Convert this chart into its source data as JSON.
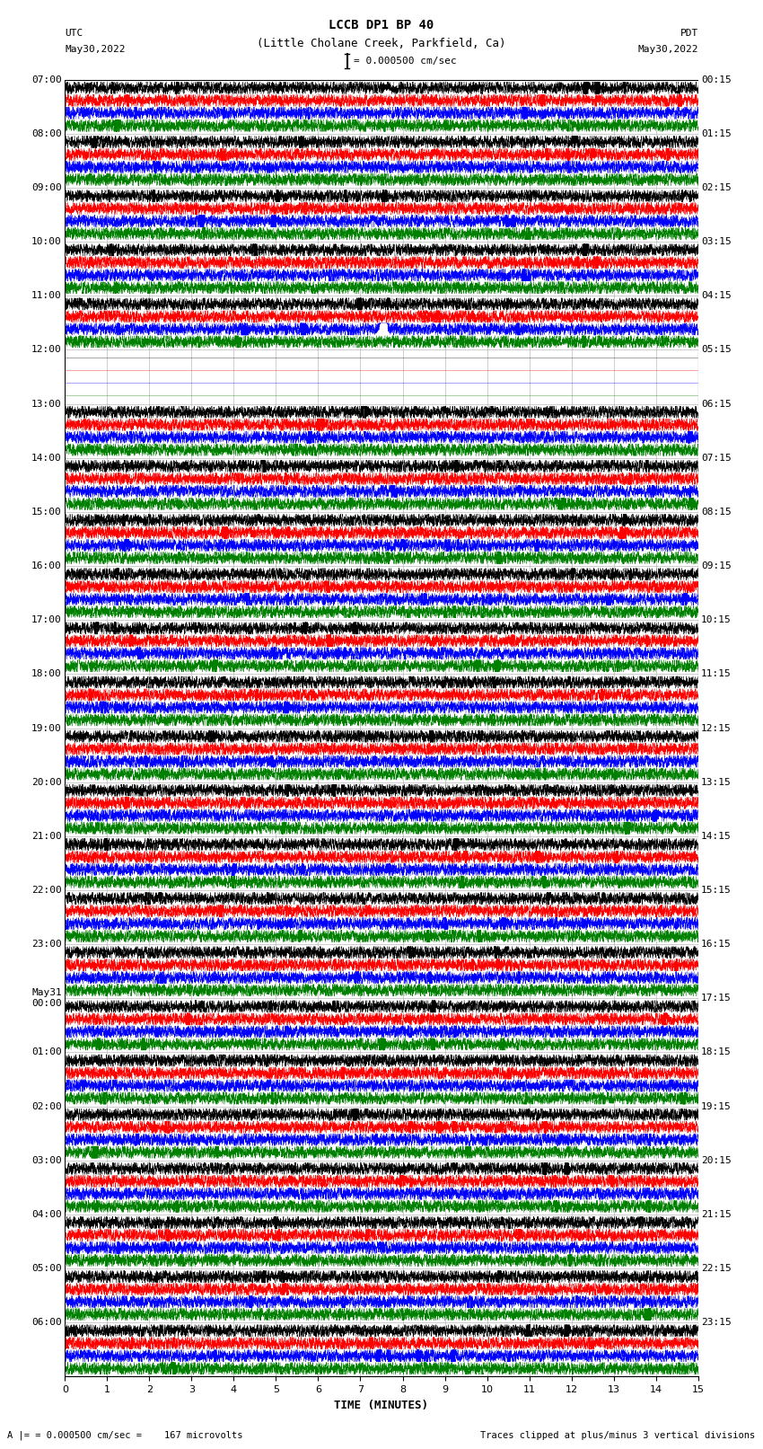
{
  "title_line1": "LCCB DP1 BP 40",
  "title_line2": "(Little Cholane Creek, Parkfield, Ca)",
  "scale_label": "= 0.000500 cm/sec",
  "footer_left": "= 0.000500 cm/sec =    167 microvolts",
  "footer_right": "Traces clipped at plus/minus 3 vertical divisions",
  "xlabel": "TIME (MINUTES)",
  "label_left": "UTC",
  "label_right": "PDT",
  "date_left": "May30,2022",
  "date_right": "May30,2022",
  "left_times": [
    "07:00",
    "08:00",
    "09:00",
    "10:00",
    "11:00",
    "12:00",
    "13:00",
    "14:00",
    "15:00",
    "16:00",
    "17:00",
    "18:00",
    "19:00",
    "20:00",
    "21:00",
    "22:00",
    "23:00",
    "May31\n00:00",
    "01:00",
    "02:00",
    "03:00",
    "04:00",
    "05:00",
    "06:00"
  ],
  "right_times": [
    "00:15",
    "01:15",
    "02:15",
    "03:15",
    "04:15",
    "05:15",
    "06:15",
    "07:15",
    "08:15",
    "09:15",
    "10:15",
    "11:15",
    "12:15",
    "13:15",
    "14:15",
    "15:15",
    "16:15",
    "17:15",
    "18:15",
    "19:15",
    "20:15",
    "21:15",
    "22:15",
    "23:15"
  ],
  "trace_colors": [
    "black",
    "red",
    "blue",
    "green"
  ],
  "n_rows": 24,
  "n_traces_per_row": 4,
  "xmin": 0,
  "xmax": 15,
  "bg_color": "white",
  "spine_color": "black",
  "grid_color": "#aaaaaa",
  "tick_label_fontsize": 8,
  "title_fontsize": 9,
  "label_fontsize": 8,
  "footer_fontsize": 7.5,
  "figsize": [
    8.5,
    16.13
  ],
  "dpi": 100,
  "empty_rows": [
    5
  ],
  "special_blue_spike_row": 4,
  "special_blue_spike_minute": 7.4,
  "special_black_spike_row": 3,
  "special_black_spike_minute": 7.8,
  "special_green_spike_row": 10,
  "special_green_spike_minute": 0.3,
  "special_green_dot_row": 12,
  "special_green_dot_minute": 14.8
}
